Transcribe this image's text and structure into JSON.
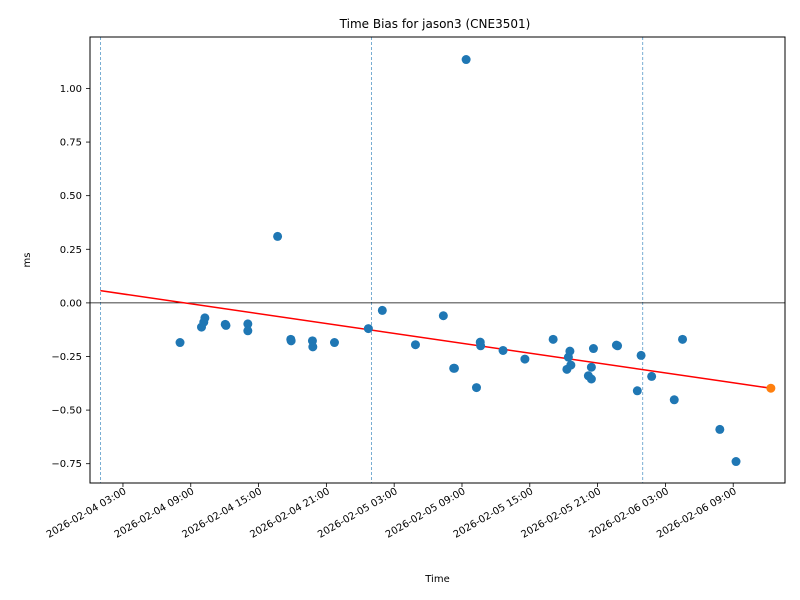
{
  "chart_data": {
    "type": "scatter",
    "title": "Time Bias for jason3 (CNE3501)",
    "xlabel": "Time",
    "ylabel": "ms",
    "x_axis_type": "datetime",
    "xlim": [
      "2026-02-04 00:05",
      "2026-02-06 13:35"
    ],
    "ylim": [
      -0.84,
      1.24
    ],
    "y_ticks": [
      -0.75,
      -0.5,
      -0.25,
      0.0,
      0.25,
      0.5,
      0.75,
      1.0
    ],
    "y_tick_labels": [
      "−0.75",
      "−0.50",
      "−0.25",
      "0.00",
      "0.25",
      "0.50",
      "0.75",
      "1.00"
    ],
    "x_ticks": [
      "2026-02-04 03:00",
      "2026-02-04 09:00",
      "2026-02-04 15:00",
      "2026-02-04 21:00",
      "2026-02-05 03:00",
      "2026-02-05 09:00",
      "2026-02-05 15:00",
      "2026-02-05 21:00",
      "2026-02-06 03:00",
      "2026-02-06 09:00"
    ],
    "x_tick_labels": [
      "2026-02-04 03:00",
      "2026-02-04 09:00",
      "2026-02-04 15:00",
      "2026-02-04 21:00",
      "2026-02-05 03:00",
      "2026-02-05 09:00",
      "2026-02-05 15:00",
      "2026-02-05 21:00",
      "2026-02-06 03:00",
      "2026-02-06 09:00"
    ],
    "vertical_lines": [
      "2026-02-04 01:00",
      "2026-02-05 01:00",
      "2026-02-06 01:00"
    ],
    "horizontal_line": 0.0,
    "grid": false,
    "colors": {
      "points": "#1f77b4",
      "highlight": "#ff7f0e",
      "trend": "#ff0000",
      "vlines": "#1f77b4",
      "hline": "#000000"
    },
    "series": [
      {
        "role": "measurements",
        "points": [
          {
            "x": "2026-02-04 08:03",
            "y": -0.185
          },
          {
            "x": "2026-02-04 09:57",
            "y": -0.113
          },
          {
            "x": "2026-02-04 10:09",
            "y": -0.09
          },
          {
            "x": "2026-02-04 10:15",
            "y": -0.07
          },
          {
            "x": "2026-02-04 12:03",
            "y": -0.1
          },
          {
            "x": "2026-02-04 12:07",
            "y": -0.105
          },
          {
            "x": "2026-02-04 14:03",
            "y": -0.098
          },
          {
            "x": "2026-02-04 14:03",
            "y": -0.13
          },
          {
            "x": "2026-02-04 16:41",
            "y": 0.31
          },
          {
            "x": "2026-02-04 17:51",
            "y": -0.17
          },
          {
            "x": "2026-02-04 17:53",
            "y": -0.177
          },
          {
            "x": "2026-02-04 19:46",
            "y": -0.177
          },
          {
            "x": "2026-02-04 19:48",
            "y": -0.205
          },
          {
            "x": "2026-02-04 21:43",
            "y": -0.185
          },
          {
            "x": "2026-02-05 00:43",
            "y": -0.12
          },
          {
            "x": "2026-02-05 01:57",
            "y": -0.035
          },
          {
            "x": "2026-02-05 04:53",
            "y": -0.195
          },
          {
            "x": "2026-02-05 07:21",
            "y": -0.06
          },
          {
            "x": "2026-02-05 08:16",
            "y": -0.305
          },
          {
            "x": "2026-02-05 08:20",
            "y": -0.305
          },
          {
            "x": "2026-02-05 09:22",
            "y": 1.135
          },
          {
            "x": "2026-02-05 10:17",
            "y": -0.395
          },
          {
            "x": "2026-02-05 10:37",
            "y": -0.183
          },
          {
            "x": "2026-02-05 10:39",
            "y": -0.2
          },
          {
            "x": "2026-02-05 12:38",
            "y": -0.222
          },
          {
            "x": "2026-02-05 14:34",
            "y": -0.262
          },
          {
            "x": "2026-02-05 17:04",
            "y": -0.17
          },
          {
            "x": "2026-02-05 18:17",
            "y": -0.31
          },
          {
            "x": "2026-02-05 18:25",
            "y": -0.253
          },
          {
            "x": "2026-02-05 18:33",
            "y": -0.225
          },
          {
            "x": "2026-02-05 18:38",
            "y": -0.29
          },
          {
            "x": "2026-02-05 20:11",
            "y": -0.34
          },
          {
            "x": "2026-02-05 20:27",
            "y": -0.355
          },
          {
            "x": "2026-02-05 20:27",
            "y": -0.3
          },
          {
            "x": "2026-02-05 20:38",
            "y": -0.213
          },
          {
            "x": "2026-02-05 22:40",
            "y": -0.197
          },
          {
            "x": "2026-02-05 22:46",
            "y": -0.2
          },
          {
            "x": "2026-02-06 00:31",
            "y": -0.41
          },
          {
            "x": "2026-02-06 00:51",
            "y": -0.245
          },
          {
            "x": "2026-02-06 01:47",
            "y": -0.343
          },
          {
            "x": "2026-02-06 03:47",
            "y": -0.452
          },
          {
            "x": "2026-02-06 04:31",
            "y": -0.17
          },
          {
            "x": "2026-02-06 07:49",
            "y": -0.59
          },
          {
            "x": "2026-02-06 09:15",
            "y": -0.74
          }
        ]
      },
      {
        "role": "latest",
        "points": [
          {
            "x": "2026-02-06 12:20",
            "y": -0.398
          }
        ]
      }
    ],
    "trend_line": [
      {
        "x": "2026-02-04 01:00",
        "y": 0.057
      },
      {
        "x": "2026-02-06 12:20",
        "y": -0.398
      }
    ]
  }
}
